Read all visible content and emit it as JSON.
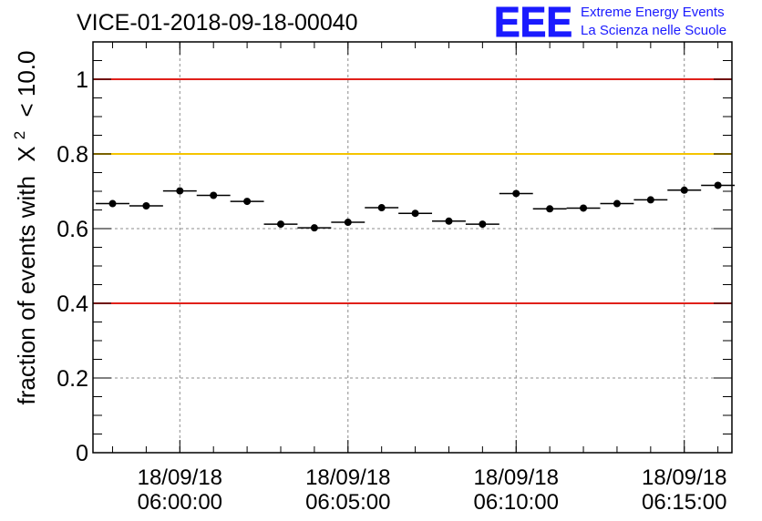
{
  "chart_data": {
    "type": "scatter",
    "title": "VICE-01-2018-09-18-00040",
    "ylabel_prefix": "fraction of events with",
    "ylabel_chi": "X",
    "ylabel_sup": "2",
    "ylabel_suffix": "< 10.0",
    "ylim": [
      0,
      1.1
    ],
    "y_ticks": [
      "0",
      "0.2",
      "0.4",
      "0.6",
      "0.8",
      "1"
    ],
    "x_ticks": [
      {
        "date": "18/09/18",
        "time": "06:00:00"
      },
      {
        "date": "18/09/18",
        "time": "06:05:00"
      },
      {
        "date": "18/09/18",
        "time": "06:10:00"
      },
      {
        "date": "18/09/18",
        "time": "06:15:00"
      }
    ],
    "x_range_minutes": [
      "05:57:25",
      "06:16:25"
    ],
    "bin_width": "00:01:00",
    "grid": true,
    "reference_lines": [
      {
        "value": 1.0,
        "color": "#e0201a"
      },
      {
        "value": 0.8,
        "color": "#f5c400"
      },
      {
        "value": 0.4,
        "color": "#e0201a"
      }
    ],
    "points": [
      {
        "x": "05:58:00",
        "y": 0.667
      },
      {
        "x": "05:59:00",
        "y": 0.661
      },
      {
        "x": "06:00:00",
        "y": 0.701
      },
      {
        "x": "06:01:00",
        "y": 0.689
      },
      {
        "x": "06:02:00",
        "y": 0.673
      },
      {
        "x": "06:03:00",
        "y": 0.612
      },
      {
        "x": "06:04:00",
        "y": 0.602
      },
      {
        "x": "06:05:00",
        "y": 0.617
      },
      {
        "x": "06:06:00",
        "y": 0.656
      },
      {
        "x": "06:07:00",
        "y": 0.641
      },
      {
        "x": "06:08:00",
        "y": 0.62
      },
      {
        "x": "06:09:00",
        "y": 0.612
      },
      {
        "x": "06:10:00",
        "y": 0.694
      },
      {
        "x": "06:11:00",
        "y": 0.653
      },
      {
        "x": "06:12:00",
        "y": 0.655
      },
      {
        "x": "06:13:00",
        "y": 0.667
      },
      {
        "x": "06:14:00",
        "y": 0.677
      },
      {
        "x": "06:15:00",
        "y": 0.703
      },
      {
        "x": "06:16:00",
        "y": 0.716
      }
    ]
  },
  "logo": {
    "mark": "EEE",
    "line1": "Extreme Energy Events",
    "line2": "La Scienza nelle Scuole",
    "color": "#1a1aff"
  },
  "colors": {
    "axis": "#000000",
    "grid": "#8c8c8c",
    "marker": "#000000"
  }
}
